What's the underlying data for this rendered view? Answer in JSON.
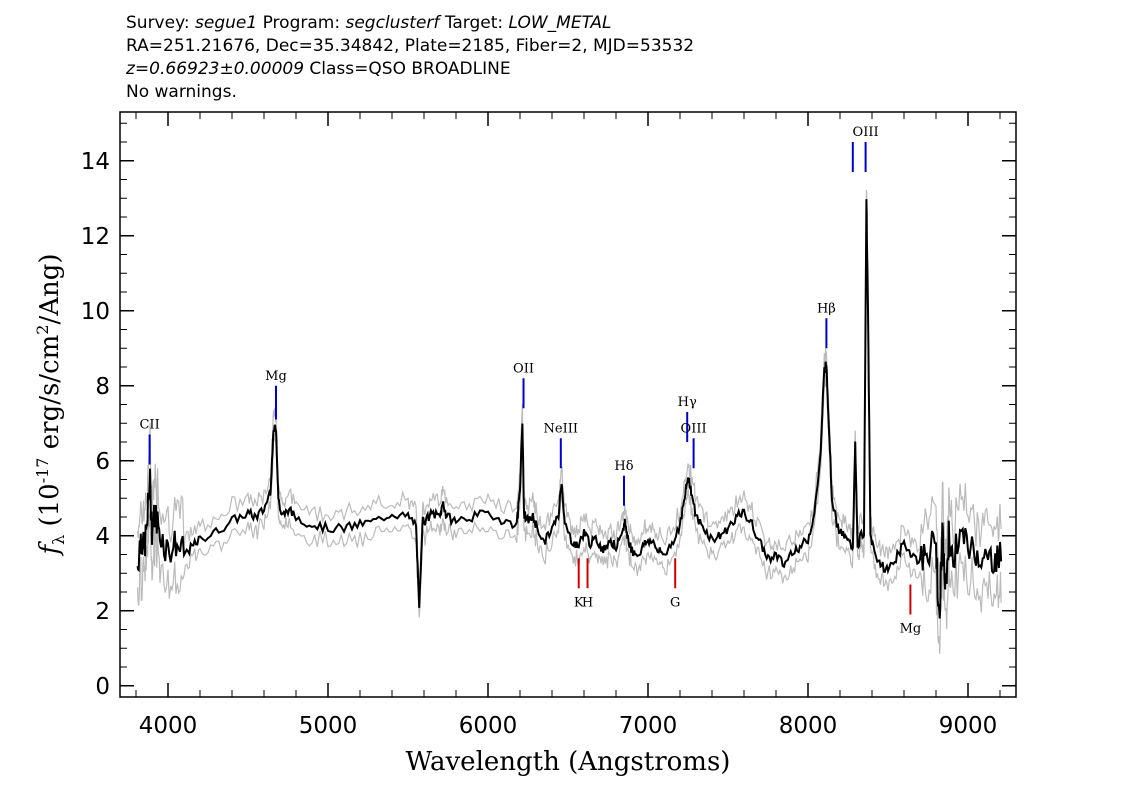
{
  "header": {
    "survey_label": "Survey:",
    "survey": "segue1",
    "program_label": "Program:",
    "program": "segclusterf",
    "target_label": "Target:",
    "target": "LOW_METAL",
    "line2": "RA=251.21676, Dec=35.34842, Plate=2185, Fiber=2, MJD=53532",
    "redshift": "z=0.66923±0.00009",
    "class_text": "Class=QSO BROADLINE",
    "warnings": "No warnings."
  },
  "colors": {
    "flux": "#000000",
    "error": "#bbbbbb",
    "emission": "#0000cc",
    "absorption": "#cc0000"
  },
  "chart_data": {
    "type": "line",
    "xlabel": "Wavelength (Angstroms)",
    "ylabel": "f_λ (10^-17 erg/s/cm^2/Ang)",
    "xlim": [
      3700,
      9300
    ],
    "ylim": [
      -0.3,
      15.3
    ],
    "xticks": [
      4000,
      5000,
      6000,
      7000,
      8000,
      9000
    ],
    "yticks": [
      0,
      2,
      4,
      6,
      8,
      10,
      12,
      14
    ],
    "series": [
      {
        "x": [
          3810,
          3830,
          3850,
          3870,
          3885,
          3900,
          3920,
          3950,
          4000,
          4050,
          4100,
          4150,
          4200,
          4300,
          4400,
          4500,
          4550,
          4600,
          4640,
          4660,
          4675,
          4690,
          4710,
          4750,
          4800,
          4900,
          5000,
          5100,
          5200,
          5300,
          5400,
          5500,
          5550,
          5570,
          5590,
          5610,
          5650,
          5700,
          5720,
          5740,
          5800,
          5900,
          6000,
          6100,
          6180,
          6200,
          6215,
          6225,
          6240,
          6280,
          6300,
          6350,
          6400,
          6440,
          6460,
          6480,
          6520,
          6560,
          6600,
          6640,
          6680,
          6720,
          6760,
          6800,
          6840,
          6855,
          6870,
          6900,
          6940,
          6980,
          7020,
          7060,
          7100,
          7150,
          7200,
          7230,
          7250,
          7270,
          7300,
          7350,
          7400,
          7450,
          7500,
          7550,
          7600,
          7650,
          7700,
          7750,
          7800,
          7850,
          7900,
          7950,
          8000,
          8040,
          8080,
          8100,
          8115,
          8130,
          8150,
          8180,
          8220,
          8260,
          8280,
          8295,
          8310,
          8330,
          8350,
          8365,
          8375,
          8390,
          8420,
          8460,
          8500,
          8550,
          8600,
          8650,
          8700,
          8750,
          8800,
          8820,
          8840,
          8860,
          8880,
          8900,
          8950,
          9000,
          9050,
          9100,
          9150,
          9190,
          9210
        ],
        "y": [
          3.2,
          4.0,
          3.6,
          4.3,
          5.6,
          4.2,
          4.6,
          4.1,
          3.6,
          3.8,
          3.5,
          3.7,
          3.9,
          4.1,
          4.4,
          4.6,
          4.5,
          4.7,
          5.2,
          6.8,
          6.9,
          5.0,
          4.5,
          4.7,
          4.5,
          4.3,
          4.2,
          4.2,
          4.3,
          4.4,
          4.6,
          4.5,
          4.3,
          2.0,
          4.4,
          4.4,
          4.6,
          4.5,
          4.9,
          4.5,
          4.4,
          4.5,
          4.6,
          4.4,
          4.3,
          5.3,
          7.0,
          4.6,
          4.4,
          4.5,
          4.3,
          3.8,
          4.2,
          4.5,
          5.5,
          4.3,
          3.9,
          3.7,
          4.1,
          3.8,
          3.9,
          3.6,
          3.9,
          3.7,
          4.0,
          4.4,
          4.0,
          3.6,
          3.5,
          3.8,
          3.9,
          3.6,
          3.5,
          3.8,
          4.3,
          5.0,
          5.6,
          5.2,
          4.5,
          4.2,
          3.9,
          4.0,
          4.2,
          4.5,
          4.6,
          4.3,
          3.8,
          3.4,
          3.5,
          3.2,
          3.6,
          3.7,
          3.9,
          4.6,
          6.2,
          8.4,
          8.6,
          7.0,
          5.0,
          4.3,
          4.0,
          3.8,
          3.7,
          6.4,
          3.7,
          4.0,
          4.1,
          13.0,
          10.0,
          4.0,
          3.5,
          3.2,
          3.1,
          3.4,
          3.8,
          3.5,
          3.3,
          3.6,
          3.8,
          1.8,
          4.0,
          2.5,
          4.0,
          3.4,
          4.0,
          3.7,
          3.6,
          3.3,
          3.4,
          3.3,
          3.8
        ]
      }
    ],
    "lines": [
      {
        "label": "CII",
        "kind": "emission",
        "x": 3885,
        "y1": 5.9,
        "y2": 6.7
      },
      {
        "label": "Mg",
        "kind": "emission",
        "x": 4675,
        "y1": 7.1,
        "y2": 8.0
      },
      {
        "label": "OII",
        "kind": "emission",
        "x": 6222,
        "y1": 7.4,
        "y2": 8.2
      },
      {
        "label": "NeIII",
        "kind": "emission",
        "x": 6455,
        "y1": 5.8,
        "y2": 6.6
      },
      {
        "label": "Hδ",
        "kind": "emission",
        "x": 6850,
        "y1": 4.8,
        "y2": 5.6
      },
      {
        "label": "Hγ",
        "kind": "emission",
        "x": 7245,
        "y1": 6.5,
        "y2": 7.3
      },
      {
        "label": "OIII",
        "kind": "emission",
        "x": 7285,
        "y1": 5.8,
        "y2": 6.6
      },
      {
        "label": "Hβ",
        "kind": "emission",
        "x": 8115,
        "y1": 9.0,
        "y2": 9.8
      },
      {
        "label": "",
        "kind": "emission",
        "x": 8280,
        "y1": 13.7,
        "y2": 14.5
      },
      {
        "label": "OIII",
        "kind": "emission",
        "x": 8360,
        "y1": 13.7,
        "y2": 14.5
      },
      {
        "label": "K",
        "kind": "absorption",
        "x": 6567,
        "y1": 2.6,
        "y2": 3.4
      },
      {
        "label": "H",
        "kind": "absorption",
        "x": 6622,
        "y1": 2.6,
        "y2": 3.4
      },
      {
        "label": "G",
        "kind": "absorption",
        "x": 7170,
        "y1": 2.6,
        "y2": 3.4
      },
      {
        "label": "Mg",
        "kind": "absorption",
        "x": 8640,
        "y1": 1.9,
        "y2": 2.7
      }
    ]
  }
}
